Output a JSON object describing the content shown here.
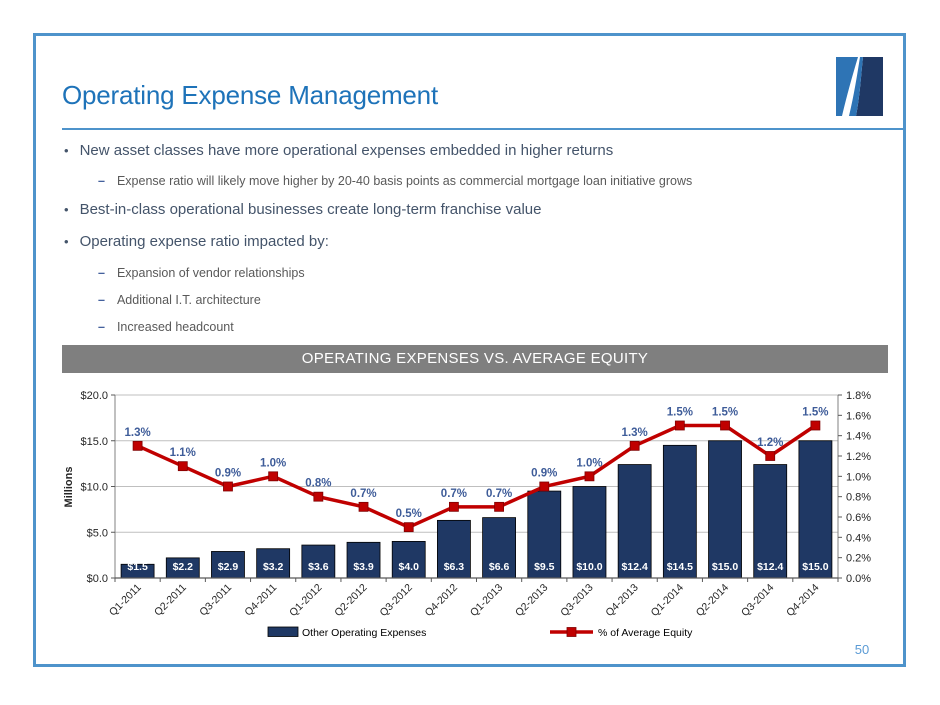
{
  "slide": {
    "title": "Operating Expense Management",
    "page_number": "50",
    "banner": "OPERATING EXPENSES VS. AVERAGE EQUITY",
    "bullets": [
      {
        "text": "New asset classes have more operational expenses embedded in higher returns",
        "subs": [
          "Expense ratio will likely move higher by 20-40 basis points as commercial mortgage loan initiative grows"
        ]
      },
      {
        "text": "Best-in-class operational businesses create long-term franchise value",
        "subs": []
      },
      {
        "text": "Operating expense ratio impacted by:",
        "subs": [
          "Expansion of vendor relationships",
          "Additional I.T. architecture",
          "Increased headcount"
        ]
      }
    ]
  },
  "chart_data": {
    "type": "bar",
    "title": "OPERATING EXPENSES VS. AVERAGE EQUITY",
    "categories": [
      "Q1-2011",
      "Q2-2011",
      "Q3-2011",
      "Q4-2011",
      "Q1-2012",
      "Q2-2012",
      "Q3-2012",
      "Q4-2012",
      "Q1-2013",
      "Q2-2013",
      "Q3-2013",
      "Q4-2013",
      "Q1-2014",
      "Q2-2014",
      "Q3-2014",
      "Q4-2014"
    ],
    "series": [
      {
        "name": "Other Operating Expenses",
        "type": "bar",
        "yaxis": "left",
        "color": "#1F3864",
        "values": [
          1.5,
          2.2,
          2.9,
          3.2,
          3.6,
          3.9,
          4.0,
          6.3,
          6.6,
          9.5,
          10.0,
          12.4,
          14.5,
          15.0,
          12.4,
          15.0
        ],
        "labels": [
          "$1.5",
          "$2.2",
          "$2.9",
          "$3.2",
          "$3.6",
          "$3.9",
          "$4.0",
          "$6.3",
          "$6.6",
          "$9.5",
          "$10.0",
          "$12.4",
          "$14.5",
          "$15.0",
          "$12.4",
          "$15.0"
        ]
      },
      {
        "name": "% of Average Equity",
        "type": "line",
        "yaxis": "right",
        "color": "#C00000",
        "values": [
          1.3,
          1.1,
          0.9,
          1.0,
          0.8,
          0.7,
          0.5,
          0.7,
          0.7,
          0.9,
          1.0,
          1.3,
          1.5,
          1.5,
          1.2,
          1.5
        ],
        "labels": [
          "1.3%",
          "1.1%",
          "0.9%",
          "1.0%",
          "0.8%",
          "0.7%",
          "0.5%",
          "0.7%",
          "0.7%",
          "0.9%",
          "1.0%",
          "1.3%",
          "1.5%",
          "1.5%",
          "1.2%",
          "1.5%"
        ]
      }
    ],
    "left_axis": {
      "title": "Millions",
      "min": 0,
      "max": 20,
      "tick_step": 5,
      "tick_labels": [
        "$0.0",
        "$5.0",
        "$10.0",
        "$15.0",
        "$20.0"
      ]
    },
    "right_axis": {
      "min": 0,
      "max": 1.8,
      "tick_step": 0.2,
      "tick_labels": [
        "0.0%",
        "0.2%",
        "0.4%",
        "0.6%",
        "0.8%",
        "1.0%",
        "1.2%",
        "1.4%",
        "1.6%",
        "1.8%"
      ]
    },
    "grid": "horizontal-major",
    "legend_position": "bottom"
  },
  "colors": {
    "frame_border": "#4E93CB",
    "title_text": "#1E73B9",
    "bullet_text": "#44546A",
    "sub_bullet_text": "#595959",
    "banner_bg": "#7F7F7F",
    "banner_text": "#FFFFFF",
    "bar_fill": "#1F3864",
    "line_red": "#C00000",
    "pct_label": "#3E5C99",
    "gridline": "#BFBFBF",
    "axis_text": "#262626",
    "page_number": "#5B9BD5"
  }
}
